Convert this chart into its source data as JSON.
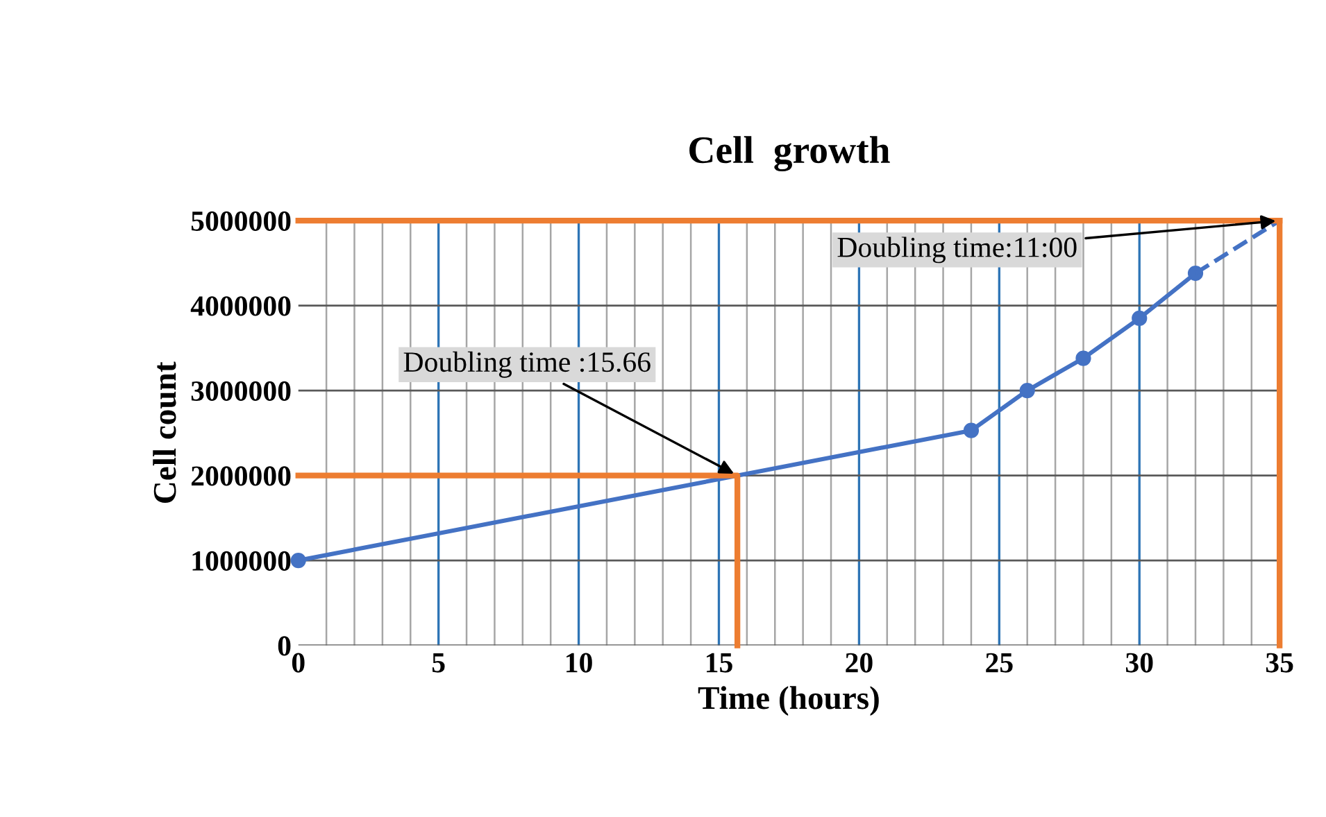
{
  "chart_data": {
    "type": "line",
    "title": "Cell  growth",
    "xlabel": "Time (hours)",
    "ylabel": "Cell count",
    "series": [
      {
        "color": "#4472c4",
        "marker": "circle",
        "line_style": "solid",
        "x": [
          0,
          24,
          26,
          28,
          30,
          32
        ],
        "values": [
          1000000,
          2530000,
          3000000,
          3380000,
          3850000,
          4380000
        ]
      },
      {
        "color": "#4472c4",
        "marker": "none",
        "line_style": "dashed",
        "x": [
          32,
          35
        ],
        "values": [
          4380000,
          5000000
        ]
      },
      {
        "color": "#ed7d31",
        "marker": "none",
        "line_style": "solid",
        "x": [
          0,
          15.66,
          15.66
        ],
        "values": [
          2000000,
          2000000,
          0
        ]
      }
    ],
    "ref_lines": [
      {
        "axis": "y",
        "value": 5000000,
        "color": "#ed7d31"
      },
      {
        "axis": "x",
        "value": 35,
        "color": "#ed7d31"
      }
    ],
    "annotations": [
      {
        "text": "Doubling time :15.66",
        "x": 15.66,
        "y": 2000000
      },
      {
        "text": "Doubling time:11:00",
        "x": 35,
        "y": 5000000
      }
    ],
    "xlim": [
      0,
      35
    ],
    "ylim": [
      0,
      5000000
    ],
    "xticks": [
      0,
      {
        "value": 1,
        "label": null
      },
      {
        "value": 2,
        "label": null
      },
      {
        "value": 3,
        "label": null
      },
      {
        "value": 4,
        "label": null
      },
      5,
      {
        "value": 6,
        "label": null
      },
      {
        "value": 7,
        "label": null
      },
      {
        "value": 8,
        "label": null
      },
      {
        "value": 9,
        "label": null
      },
      10,
      {
        "value": 11,
        "label": null
      },
      {
        "value": 12,
        "label": null
      },
      {
        "value": 13,
        "label": null
      },
      {
        "value": 14,
        "label": null
      },
      15,
      {
        "value": 16,
        "label": null
      },
      {
        "value": 17,
        "label": null
      },
      {
        "value": 18,
        "label": null
      },
      {
        "value": 19,
        "label": null
      },
      20,
      {
        "value": 21,
        "label": null
      },
      {
        "value": 22,
        "label": null
      },
      {
        "value": 23,
        "label": null
      },
      {
        "value": 24,
        "label": null
      },
      25,
      {
        "value": 26,
        "label": null
      },
      {
        "value": 27,
        "label": null
      },
      {
        "value": 28,
        "label": null
      },
      {
        "value": 29,
        "label": null
      },
      30,
      {
        "value": 31,
        "label": null
      },
      {
        "value": 32,
        "label": null
      },
      {
        "value": 33,
        "label": null
      },
      {
        "value": 34,
        "label": null
      },
      35
    ],
    "yticks": [
      0,
      1000000,
      2000000,
      3000000,
      4000000,
      5000000
    ],
    "grid": true
  }
}
